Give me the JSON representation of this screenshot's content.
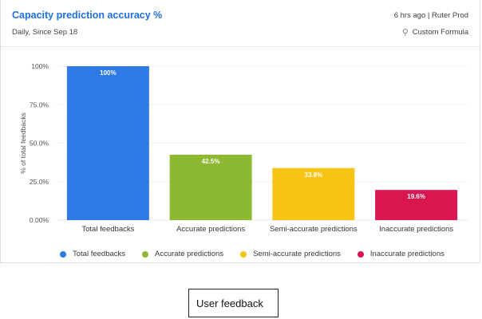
{
  "header": {
    "title": "Capacity prediction accuracy %",
    "subtitle": "Daily, Since Sep 18",
    "meta": "6 hrs ago | Ruter Prod",
    "formula_label": "Custom Formula",
    "formula_icon": "formula-icon"
  },
  "chart_data": {
    "type": "bar",
    "title": "Capacity prediction accuracy %",
    "ylabel": "% of total feedbacks",
    "xlabel": "",
    "ylim": [
      0,
      100
    ],
    "yticks": [
      0,
      25,
      50,
      75,
      100
    ],
    "ytick_labels": [
      "0.00%",
      "25.0%",
      "50.0%",
      "75.0%",
      "100%"
    ],
    "categories": [
      "Total feedbacks",
      "Accurate predictions",
      "Semi-accurate predictions",
      "Inaccurate predictions"
    ],
    "values": [
      100,
      42.5,
      33.8,
      19.6
    ],
    "data_labels": [
      "100%",
      "42.5%",
      "33.8%",
      "19.6%"
    ],
    "colors": [
      "#2f7be5",
      "#8db832",
      "#f8c313",
      "#d91650"
    ],
    "grid": true,
    "legend": "bottom"
  },
  "caption": "User feedback"
}
